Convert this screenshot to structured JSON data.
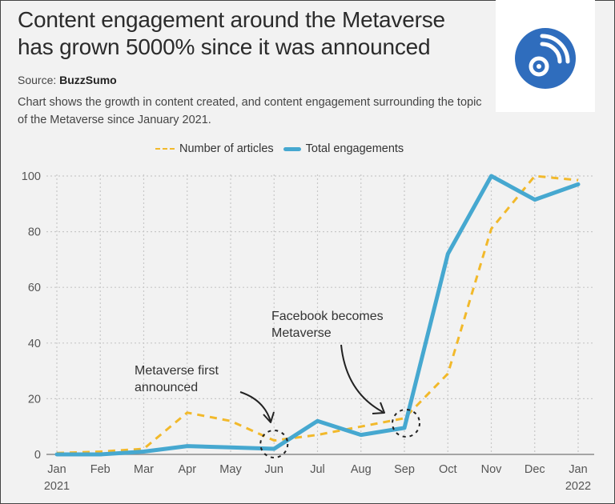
{
  "header": {
    "title_line1": "Content engagement around the Metaverse",
    "title_line2": "has grown 5000% since it was announced",
    "source_label": "Source:",
    "source_name": "BuzzSumo",
    "description": "Chart shows the growth in content created, and content engagement surrounding the topic of the Metaverse since January 2021."
  },
  "logo": {
    "icon": "rss-feed-icon",
    "color": "#2f6dbd"
  },
  "chart_data": {
    "type": "line",
    "title": "Content engagement around the Metaverse has grown 5000% since it was announced",
    "xlabel": "",
    "ylabel": "",
    "categories": [
      "Jan\n2021",
      "Feb",
      "Mar",
      "Apr",
      "May",
      "Jun",
      "Jul",
      "Aug",
      "Sep",
      "Oct",
      "Nov",
      "Dec",
      "Jan\n2022"
    ],
    "yticks": [
      0,
      20,
      40,
      60,
      80,
      100
    ],
    "ylim": [
      0,
      100
    ],
    "grid": true,
    "legend_position": "top-center",
    "series": [
      {
        "name": "Number of articles",
        "style": "dashed",
        "color": "#f2b92b",
        "values": [
          0.5,
          1,
          2,
          15,
          12,
          5,
          7,
          10,
          13,
          29,
          81,
          100,
          98.5
        ]
      },
      {
        "name": "Total engagements",
        "style": "solid",
        "color": "#46a8d0",
        "values": [
          0,
          0,
          1,
          3,
          2.5,
          2,
          12,
          7,
          9.5,
          72,
          100,
          91.5,
          97
        ]
      }
    ],
    "annotations": [
      {
        "text_line1": "Metaverse first",
        "text_line2": "announced",
        "category": "Jun"
      },
      {
        "text_line1": "Facebook becomes",
        "text_line2": "Metaverse",
        "category": "Sep"
      }
    ]
  }
}
